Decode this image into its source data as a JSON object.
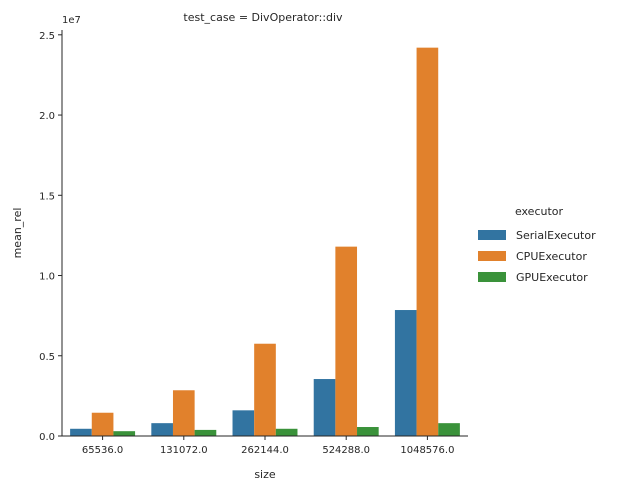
{
  "chart_data": {
    "type": "bar",
    "title": "test_case = DivOperator::div",
    "xlabel": "size",
    "ylabel": "mean_rel",
    "y_multiplier": "1e7",
    "categories": [
      "65536.0",
      "131072.0",
      "262144.0",
      "524288.0",
      "1048576.0"
    ],
    "y_ticks": [
      0,
      5000000,
      10000000,
      15000000,
      20000000,
      25000000
    ],
    "y_tick_labels": [
      "0.0",
      "0.5",
      "1.0",
      "1.5",
      "2.0",
      "2.5"
    ],
    "ylim": [
      0,
      25300000
    ],
    "grid": false,
    "legend": {
      "title": "executor",
      "placement": "right"
    },
    "series": [
      {
        "name": "SerialExecutor",
        "color": "#3274a1",
        "values": [
          450000,
          800000,
          1600000,
          3550000,
          7850000
        ]
      },
      {
        "name": "CPUExecutor",
        "color": "#e1812c",
        "values": [
          1450000,
          2850000,
          5750000,
          11800000,
          24200000
        ]
      },
      {
        "name": "GPUExecutor",
        "color": "#3a923a",
        "values": [
          300000,
          380000,
          450000,
          560000,
          800000
        ]
      }
    ]
  }
}
